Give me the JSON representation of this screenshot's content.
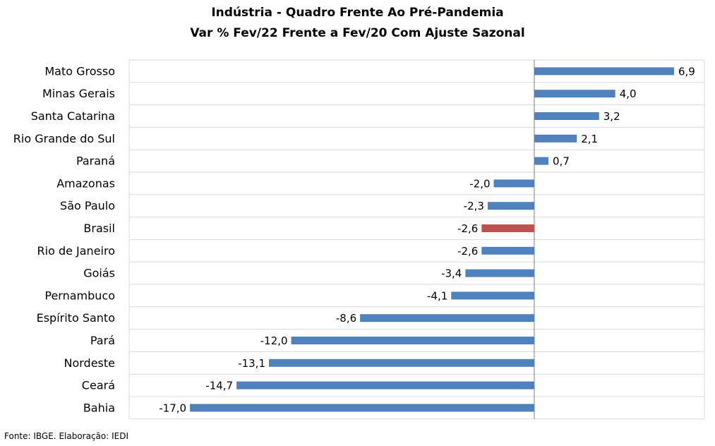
{
  "chart_data": {
    "type": "bar",
    "orientation": "horizontal",
    "title": "Indústria - Quadro Frente Ao Pré-Pandemia",
    "subtitle": "Var % Fev/22 Frente a Fev/20 Com Ajuste Sazonal",
    "xlabel": "",
    "ylabel": "",
    "xlim": [
      -20,
      8.4
    ],
    "grid": true,
    "legend": "none",
    "categories": [
      "Mato Grosso",
      "Minas Gerais",
      "Santa Catarina",
      "Rio Grande do Sul",
      "Paraná",
      "Amazonas",
      "São Paulo",
      "Brasil",
      "Rio de Janeiro",
      "Goiás",
      "Pernambuco",
      "Espírito Santo",
      "Pará",
      "Nordeste",
      "Ceará",
      "Bahia"
    ],
    "values": [
      6.9,
      4.0,
      3.2,
      2.1,
      0.7,
      -2.0,
      -2.3,
      -2.6,
      -2.6,
      -3.4,
      -4.1,
      -8.6,
      -12.0,
      -13.1,
      -14.7,
      -17.0
    ],
    "value_labels": [
      "6,9",
      "4,0",
      "3,2",
      "2,1",
      "0,7",
      "-2,0",
      "-2,3",
      "-2,6",
      "-2,6",
      "-3,4",
      "-4,1",
      "-8,6",
      "-12,0",
      "-13,1",
      "-14,7",
      "-17,0"
    ],
    "highlight_category": "Brasil",
    "colors": {
      "bar": "#4F81BD",
      "highlight": "#C0504D",
      "grid": "#D9D9D9",
      "axis": "#808080"
    }
  },
  "source": "Fonte: IBGE. Elaboração: IEDI"
}
